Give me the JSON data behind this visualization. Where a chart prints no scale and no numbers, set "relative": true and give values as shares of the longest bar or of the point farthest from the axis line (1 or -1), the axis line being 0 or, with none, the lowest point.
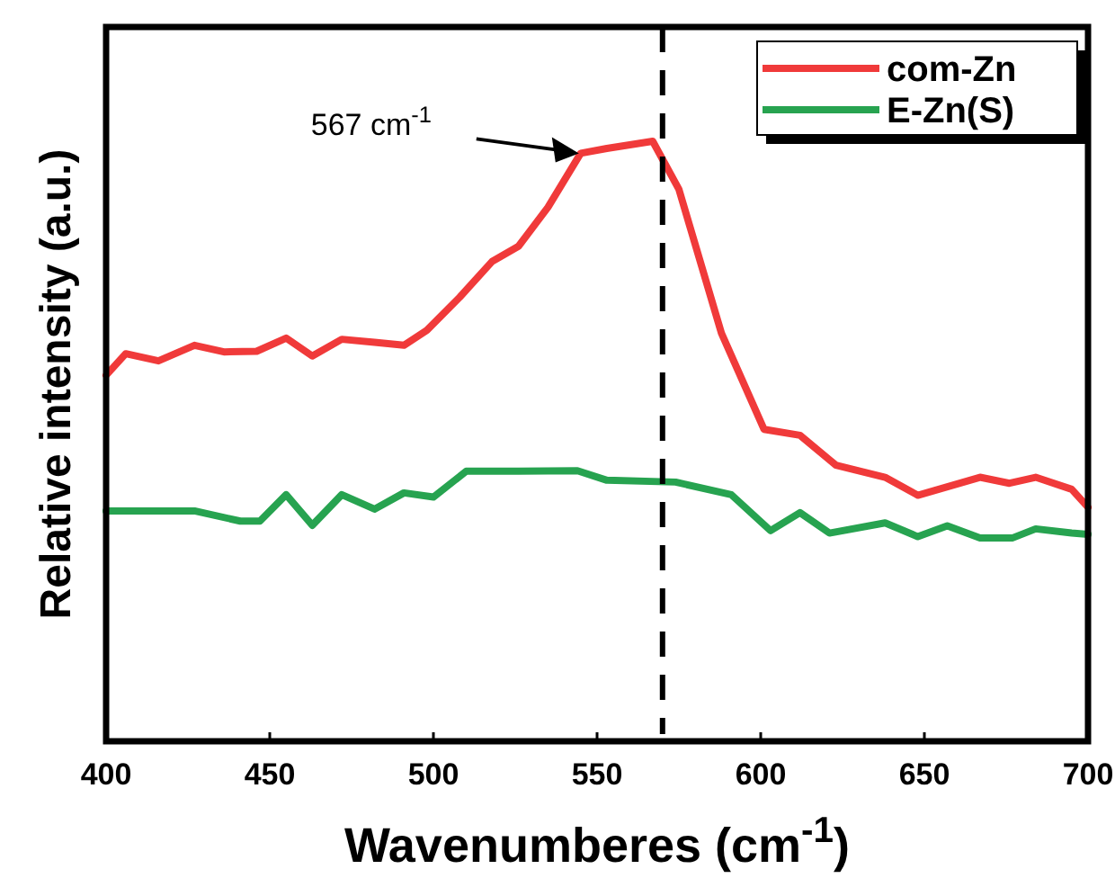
{
  "chart_data": {
    "type": "line",
    "xlabel": "Wavenumberes (cm$^{-1}$)",
    "ylabel": "Relative intensity (a.u.)",
    "relative": true,
    "xlim": [
      400,
      700
    ],
    "xticks": [
      400,
      450,
      500,
      550,
      600,
      650,
      700
    ],
    "legend": "top right",
    "grid": false,
    "marker": "none",
    "line_style": "solid",
    "ref_lines": [
      {
        "axis": "x",
        "value": 570,
        "color": "#000000",
        "line_style": "dashed"
      }
    ],
    "annotations": [
      "567 cm$^{-1}$"
    ],
    "series": [
      {
        "name": "com-Zn",
        "color": "#f03a3a",
        "x": [
          400,
          406,
          416,
          427,
          436,
          446,
          455,
          463,
          472,
          482,
          491,
          498,
          508,
          518,
          526,
          535,
          545,
          553,
          567,
          575,
          588,
          601,
          612,
          623,
          638,
          648,
          667,
          676,
          684,
          695,
          700
        ],
        "values": [
          0.61,
          0.646,
          0.634,
          0.66,
          0.649,
          0.65,
          0.672,
          0.642,
          0.67,
          0.665,
          0.66,
          0.685,
          0.74,
          0.8,
          0.825,
          0.89,
          0.98,
          0.988,
          1,
          0.92,
          0.68,
          0.52,
          0.51,
          0.46,
          0.44,
          0.41,
          0.44,
          0.43,
          0.44,
          0.42,
          0.39
        ]
      },
      {
        "name": "E-Zn(S)",
        "color": "#27a350",
        "x": [
          400,
          427,
          441,
          447,
          455,
          463,
          472,
          482,
          491,
          500,
          510,
          526,
          544,
          553,
          574,
          591,
          603,
          612,
          621,
          638,
          648,
          657,
          667,
          677,
          684,
          695,
          700
        ],
        "values": [
          0.384,
          0.384,
          0.367,
          0.367,
          0.411,
          0.36,
          0.411,
          0.387,
          0.414,
          0.407,
          0.45,
          0.45,
          0.451,
          0.435,
          0.432,
          0.411,
          0.351,
          0.381,
          0.347,
          0.364,
          0.341,
          0.359,
          0.339,
          0.339,
          0.354,
          0.347,
          0.345
        ]
      }
    ]
  }
}
